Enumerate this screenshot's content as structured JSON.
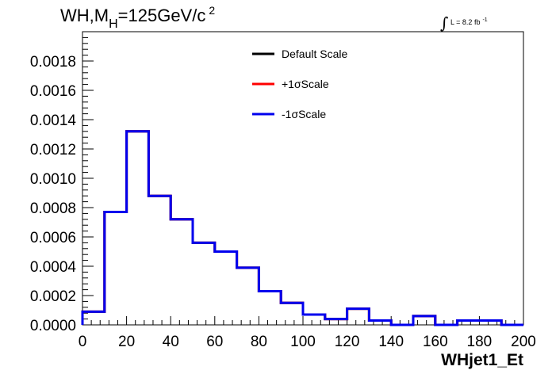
{
  "chart_data": {
    "type": "histogram",
    "title": "WH,M",
    "title_sub": "H",
    "title_rest": "=125GeV/c",
    "title_sup": "2",
    "lumi_label": "L = 8.2 fb",
    "lumi_sup": "-1",
    "lumi_integral": "∫",
    "xlabel": "WHjet1_Et",
    "xlim": [
      0,
      200
    ],
    "ylim": [
      0,
      0.002
    ],
    "x_ticks": [
      "0",
      "20",
      "40",
      "60",
      "80",
      "100",
      "120",
      "140",
      "160",
      "180",
      "200"
    ],
    "y_ticks": [
      "0.0000",
      "0.0002",
      "0.0004",
      "0.0006",
      "0.0008",
      "0.0010",
      "0.0012",
      "0.0014",
      "0.0016",
      "0.0018"
    ],
    "bin_edges": [
      0,
      10,
      20,
      30,
      40,
      50,
      60,
      70,
      80,
      90,
      100,
      110,
      120,
      130,
      140,
      150,
      160,
      170,
      180,
      190,
      200
    ],
    "series": [
      {
        "name": "Default Scale",
        "color": "#000000",
        "values": [
          9e-05,
          0.00077,
          0.00132,
          0.00088,
          0.00072,
          0.00056,
          0.0005,
          0.00039,
          0.00023,
          0.00015,
          7e-05,
          4e-05,
          0.00011,
          3e-05,
          0.0,
          6e-05,
          0.0,
          3e-05,
          3e-05,
          0.0
        ]
      },
      {
        "name": "+1σScale",
        "color": "#ff0000",
        "values": [
          9e-05,
          0.00077,
          0.00132,
          0.00088,
          0.00072,
          0.00056,
          0.0005,
          0.00039,
          0.00023,
          0.00015,
          7e-05,
          4e-05,
          0.00011,
          3e-05,
          0.0,
          6e-05,
          0.0,
          3e-05,
          3e-05,
          0.0
        ]
      },
      {
        "name": "-1σScale",
        "color": "#0000ee",
        "values": [
          9e-05,
          0.00077,
          0.00132,
          0.00088,
          0.00072,
          0.00056,
          0.0005,
          0.00039,
          0.00023,
          0.00015,
          7e-05,
          4e-05,
          0.00011,
          3e-05,
          0.0,
          6e-05,
          0.0,
          3e-05,
          3e-05,
          0.0
        ]
      }
    ],
    "legend_position": "top-center",
    "grid": false
  }
}
